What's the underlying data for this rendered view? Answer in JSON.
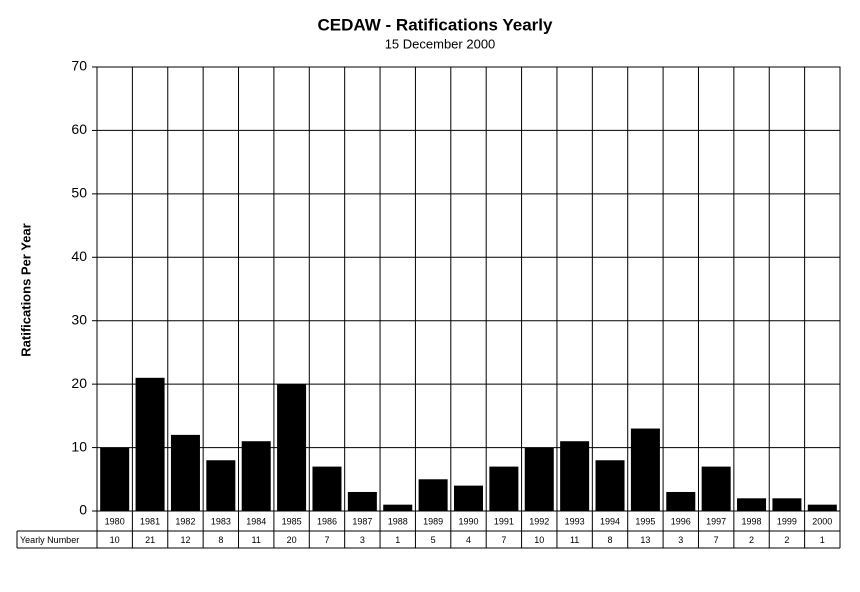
{
  "chart_data": {
    "type": "bar",
    "title": "CEDAW - Ratifications Yearly",
    "subtitle": "15 December 2000",
    "y_label": "Ratifications Per Year",
    "categories": [
      "1980",
      "1981",
      "1982",
      "1983",
      "1984",
      "1985",
      "1986",
      "1987",
      "1988",
      "1989",
      "1990",
      "1991",
      "1992",
      "1993",
      "1994",
      "1995",
      "1996",
      "1997",
      "1998",
      "1999",
      "2000"
    ],
    "series": [
      {
        "name": "Yearly Number",
        "color": "#000000",
        "values": [
          10,
          21,
          12,
          8,
          11,
          20,
          7,
          3,
          1,
          5,
          4,
          7,
          10,
          11,
          8,
          13,
          3,
          7,
          2,
          2,
          1
        ]
      }
    ],
    "ylim": [
      0,
      70
    ],
    "yticks": [
      0,
      10,
      20,
      30,
      40,
      50,
      60,
      70
    ],
    "grid": true
  }
}
